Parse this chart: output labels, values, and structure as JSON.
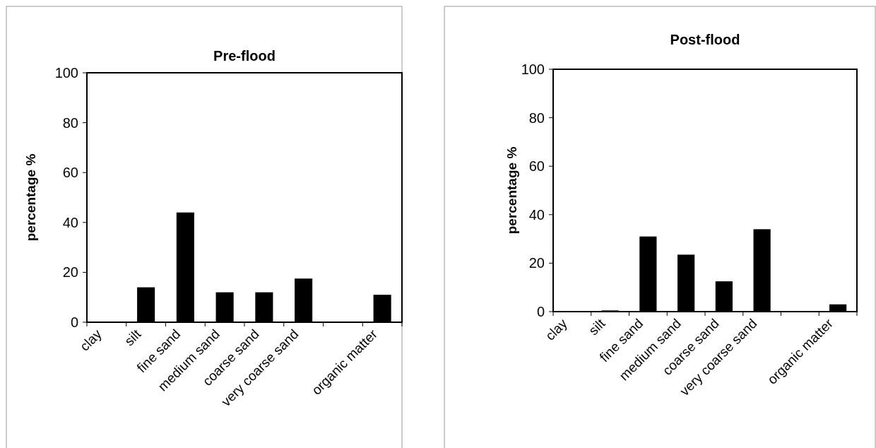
{
  "chart_data": [
    {
      "type": "bar",
      "title": "Pre-flood",
      "ylabel": "percentage %",
      "categories": [
        "clay",
        "silt",
        "fine sand",
        "medium sand",
        "coarse sand",
        "very coarse sand",
        null,
        "organic matter"
      ],
      "values": [
        0,
        14,
        44,
        12,
        12,
        17.5,
        0,
        11
      ],
      "color": "#000000",
      "ylim": [
        0,
        100
      ],
      "yticks": [
        0,
        20,
        40,
        60,
        80,
        100
      ]
    },
    {
      "type": "bar",
      "title": "Post-flood",
      "ylabel": "percentage %",
      "categories": [
        "clay",
        "silt",
        "fine sand",
        "medium sand",
        "coarse sand",
        "very coarse sand",
        null,
        "organic matter"
      ],
      "values": [
        0,
        0.5,
        31,
        23.5,
        12.5,
        34,
        0,
        3
      ],
      "color": "#000000",
      "ylim": [
        0,
        100
      ],
      "yticks": [
        0,
        20,
        40,
        60,
        80,
        100
      ]
    }
  ]
}
